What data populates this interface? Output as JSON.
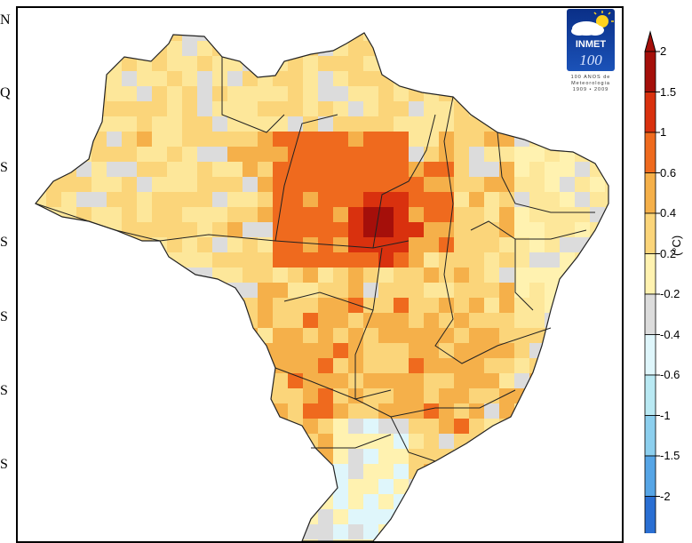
{
  "map": {
    "lat_labels": [
      "N",
      "Q",
      "S",
      "S",
      "S",
      "S",
      "S"
    ],
    "colors": {
      "neutral": "#dcdcdc",
      "c0": "#fff2b0",
      "c1": "#fde79a",
      "c2": "#fbd57a",
      "c3": "#f5b04a",
      "c4": "#ef6a1e",
      "c5": "#d9310e",
      "c6": "#a50f0a",
      "n1": "#dff6fb",
      "n2": "#b9e9f3"
    }
  },
  "logo": {
    "name": "INMET",
    "years_label": "100",
    "subtitle_line1": "100 ANOS de",
    "subtitle_line2": "Meteorologia",
    "subtitle_line3": "1909 • 2009"
  },
  "legend": {
    "unit": "(°C)",
    "ticks": [
      "2",
      "1.5",
      "1",
      "0.6",
      "0.4",
      "0.2",
      "-0.2",
      "-0.4",
      "-0.6",
      "-1",
      "-1.5",
      "-2"
    ],
    "colors": [
      "#a50f0a",
      "#d9310e",
      "#ef6a1e",
      "#f5b04a",
      "#fbd57a",
      "#fff2b0",
      "#dcdcdc",
      "#dff6fb",
      "#b9e9f3",
      "#8ccfee",
      "#56a5e6",
      "#2a6fd3"
    ]
  }
}
